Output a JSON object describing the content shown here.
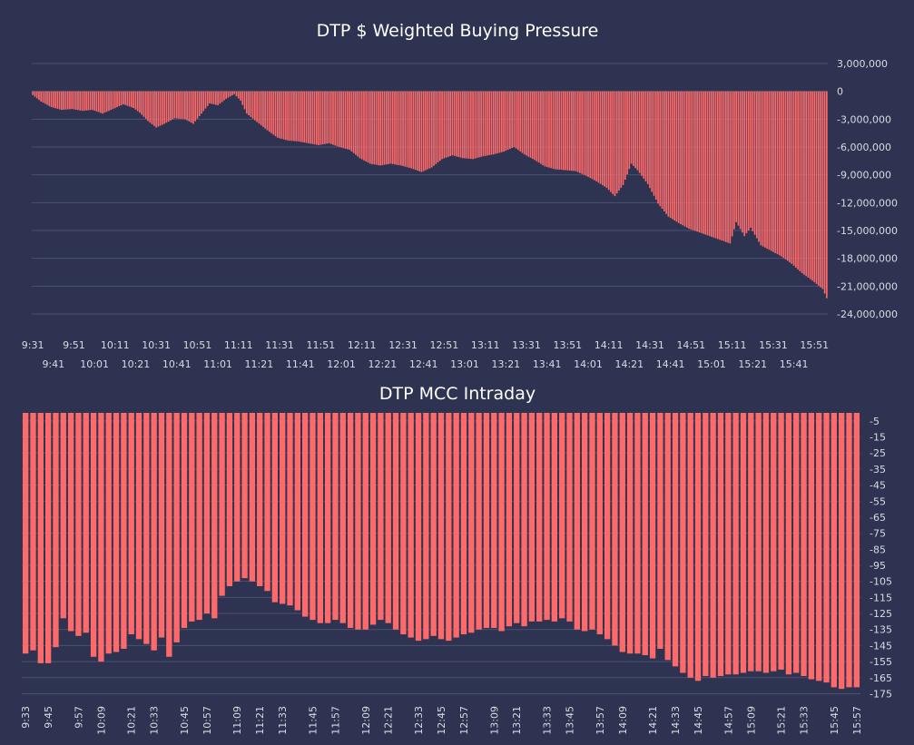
{
  "colors": {
    "background": "#2d3350",
    "bar": "#fe6a6a",
    "grid": "#4b5270",
    "text": "#d9dbe4",
    "title": "#ffffff"
  },
  "chart_data": [
    {
      "type": "bar",
      "title": "DTP $ Weighted Buying Pressure",
      "xlabel": "",
      "ylabel": "",
      "ylim": [
        -24000000,
        3000000
      ],
      "y_ticks": [
        3000000,
        0,
        -3000000,
        -6000000,
        -9000000,
        -12000000,
        -15000000,
        -18000000,
        -21000000,
        -24000000
      ],
      "y_tick_labels": [
        "3,000,000",
        "0",
        "-3,000,000",
        "-6,000,000",
        "-9,000,000",
        "-12,000,000",
        "-15,000,000",
        "-18,000,000",
        "-21,000,000",
        "-24,000,000"
      ],
      "x_tick_labels_row1": [
        "9:31",
        "9:51",
        "10:11",
        "10:31",
        "10:51",
        "11:11",
        "11:31",
        "11:51",
        "12:11",
        "12:31",
        "12:51",
        "13:11",
        "13:31",
        "13:51",
        "14:11",
        "14:31",
        "14:51",
        "15:11",
        "15:31",
        "15:51"
      ],
      "x_tick_labels_row2": [
        "9:41",
        "10:01",
        "10:21",
        "10:41",
        "11:01",
        "11:21",
        "11:41",
        "12:01",
        "12:21",
        "12:41",
        "13:01",
        "13:21",
        "13:41",
        "14:01",
        "14:21",
        "14:41",
        "15:01",
        "15:21",
        "15:41"
      ],
      "grid": true,
      "legend": "none",
      "x_start": "9:31",
      "x_end": "15:57",
      "anchors": [
        [
          "9:31",
          -400000
        ],
        [
          "9:35",
          -1100000
        ],
        [
          "9:40",
          -1700000
        ],
        [
          "9:45",
          -2000000
        ],
        [
          "9:50",
          -1900000
        ],
        [
          "9:55",
          -2100000
        ],
        [
          "10:00",
          -2000000
        ],
        [
          "10:05",
          -2400000
        ],
        [
          "10:10",
          -1900000
        ],
        [
          "10:15",
          -1400000
        ],
        [
          "10:20",
          -1800000
        ],
        [
          "10:23",
          -2300000
        ],
        [
          "10:27",
          -3200000
        ],
        [
          "10:31",
          -3900000
        ],
        [
          "10:35",
          -3500000
        ],
        [
          "10:40",
          -2900000
        ],
        [
          "10:45",
          -3000000
        ],
        [
          "10:49",
          -3500000
        ],
        [
          "10:53",
          -2400000
        ],
        [
          "10:57",
          -1300000
        ],
        [
          "11:01",
          -1500000
        ],
        [
          "11:05",
          -800000
        ],
        [
          "11:09",
          -300000
        ],
        [
          "11:12",
          -1000000
        ],
        [
          "11:15",
          -2400000
        ],
        [
          "11:20",
          -3300000
        ],
        [
          "11:25",
          -4200000
        ],
        [
          "11:30",
          -5000000
        ],
        [
          "11:35",
          -5300000
        ],
        [
          "11:40",
          -5400000
        ],
        [
          "11:45",
          -5600000
        ],
        [
          "11:50",
          -5800000
        ],
        [
          "11:55",
          -5600000
        ],
        [
          "12:00",
          -6000000
        ],
        [
          "12:05",
          -6300000
        ],
        [
          "12:10",
          -7200000
        ],
        [
          "12:15",
          -7800000
        ],
        [
          "12:20",
          -8000000
        ],
        [
          "12:25",
          -7800000
        ],
        [
          "12:30",
          -8000000
        ],
        [
          "12:35",
          -8300000
        ],
        [
          "12:40",
          -8700000
        ],
        [
          "12:45",
          -8200000
        ],
        [
          "12:50",
          -7300000
        ],
        [
          "12:55",
          -6900000
        ],
        [
          "13:00",
          -7200000
        ],
        [
          "13:05",
          -7300000
        ],
        [
          "13:10",
          -7000000
        ],
        [
          "13:15",
          -6800000
        ],
        [
          "13:20",
          -6500000
        ],
        [
          "13:25",
          -6000000
        ],
        [
          "13:30",
          -6800000
        ],
        [
          "13:35",
          -7400000
        ],
        [
          "13:40",
          -8100000
        ],
        [
          "13:45",
          -8400000
        ],
        [
          "13:50",
          -8500000
        ],
        [
          "13:55",
          -8600000
        ],
        [
          "14:00",
          -9100000
        ],
        [
          "14:05",
          -9700000
        ],
        [
          "14:10",
          -10400000
        ],
        [
          "14:14",
          -11300000
        ],
        [
          "14:18",
          -10100000
        ],
        [
          "14:22",
          -7800000
        ],
        [
          "14:25",
          -8500000
        ],
        [
          "14:30",
          -10000000
        ],
        [
          "14:35",
          -12100000
        ],
        [
          "14:40",
          -13500000
        ],
        [
          "14:45",
          -14200000
        ],
        [
          "14:50",
          -14800000
        ],
        [
          "14:55",
          -15200000
        ],
        [
          "15:00",
          -15600000
        ],
        [
          "15:05",
          -16000000
        ],
        [
          "15:10",
          -16400000
        ],
        [
          "15:13",
          -14100000
        ],
        [
          "15:17",
          -15600000
        ],
        [
          "15:20",
          -14700000
        ],
        [
          "15:25",
          -16600000
        ],
        [
          "15:30",
          -17200000
        ],
        [
          "15:35",
          -17800000
        ],
        [
          "15:40",
          -18600000
        ],
        [
          "15:45",
          -19600000
        ],
        [
          "15:50",
          -20400000
        ],
        [
          "15:55",
          -21300000
        ],
        [
          "15:57",
          -22300000
        ]
      ]
    },
    {
      "type": "bar",
      "title": "DTP MCC Intraday",
      "xlabel": "",
      "ylabel": "",
      "ylim": [
        0,
        -177
      ],
      "y_ticks": [
        -5,
        -15,
        -25,
        -35,
        -45,
        -55,
        -65,
        -75,
        -85,
        -95,
        -105,
        -115,
        -125,
        -135,
        -145,
        -155,
        -165,
        -175
      ],
      "y_tick_labels": [
        "-5",
        "-15",
        "-25",
        "-35",
        "-45",
        "-55",
        "-65",
        "-75",
        "-85",
        "-95",
        "-105",
        "-115",
        "-125",
        "-135",
        "-145",
        "-155",
        "-165",
        "-175"
      ],
      "x_tick_labels": [
        "9:33",
        "9:45",
        "9:57",
        "10:09",
        "10:21",
        "10:33",
        "10:45",
        "10:57",
        "11:09",
        "11:21",
        "11:33",
        "11:45",
        "11:57",
        "12:09",
        "12:21",
        "12:33",
        "12:45",
        "12:57",
        "13:09",
        "13:21",
        "13:33",
        "13:45",
        "13:57",
        "14:09",
        "14:21",
        "14:33",
        "14:45",
        "14:57",
        "15:09",
        "15:21",
        "15:33",
        "15:45",
        "15:57"
      ],
      "grid": true,
      "legend": "none",
      "x_start": "9:33",
      "x_end": "15:57",
      "values": [
        -150,
        -148,
        -156,
        -156,
        -146,
        -128,
        -136,
        -139,
        -137,
        -152,
        -155,
        -150,
        -149,
        -147,
        -138,
        -141,
        -144,
        -148,
        -140,
        -152,
        -143,
        -134,
        -130,
        -129,
        -125,
        -128,
        -114,
        -108,
        -105,
        -103,
        -105,
        -108,
        -111,
        -118,
        -119,
        -120,
        -123,
        -127,
        -129,
        -131,
        -131,
        -129,
        -131,
        -134,
        -135,
        -135,
        -132,
        -129,
        -131,
        -135,
        -138,
        -140,
        -142,
        -141,
        -139,
        -141,
        -142,
        -140,
        -138,
        -137,
        -135,
        -134,
        -134,
        -136,
        -133,
        -131,
        -133,
        -130,
        -130,
        -129,
        -130,
        -128,
        -130,
        -135,
        -136,
        -135,
        -138,
        -141,
        -145,
        -149,
        -150,
        -150,
        -151,
        -153,
        -147,
        -154,
        -158,
        -162,
        -165,
        -167,
        -164,
        -165,
        -164,
        -163,
        -163,
        -162,
        -161,
        -161,
        -162,
        -161,
        -160,
        -163,
        -162,
        -164,
        -166,
        -167,
        -168,
        -171,
        -172,
        -171,
        -171
      ]
    }
  ]
}
